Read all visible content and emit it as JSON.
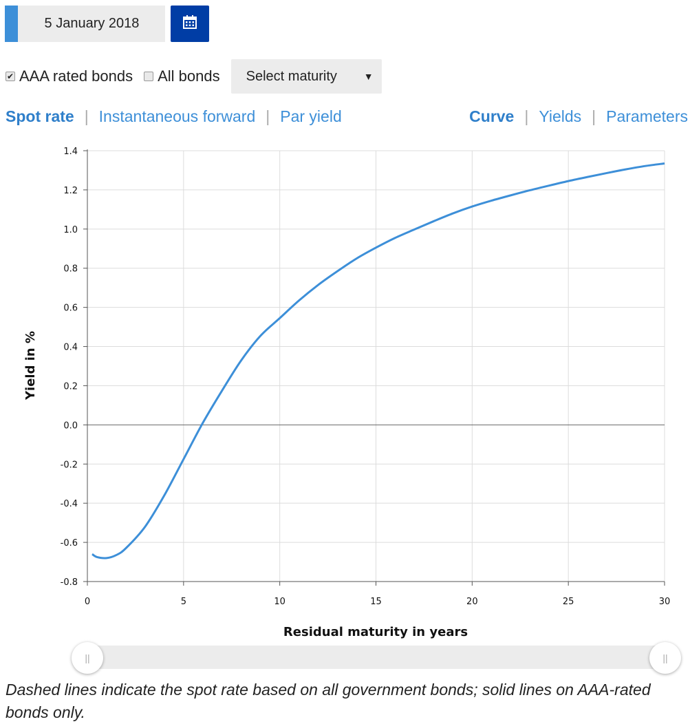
{
  "date_picker": {
    "value": "5 January 2018",
    "calendar_icon": "calendar-icon"
  },
  "options": {
    "aaa_label": "AAA rated bonds",
    "aaa_checked": true,
    "all_label": "All bonds",
    "all_checked": false,
    "maturity_select": "Select maturity"
  },
  "rate_tabs": [
    {
      "label": "Spot rate",
      "active": true
    },
    {
      "label": "Instantaneous forward",
      "active": false
    },
    {
      "label": "Par yield",
      "active": false
    }
  ],
  "view_tabs": [
    {
      "label": "Curve",
      "active": true
    },
    {
      "label": "Yields",
      "active": false
    },
    {
      "label": "Parameters",
      "active": false
    }
  ],
  "chart_data": {
    "type": "line",
    "xlabel": "Residual maturity in years",
    "ylabel": "Yield in %",
    "xlim": [
      0,
      30
    ],
    "ylim": [
      -0.8,
      1.4
    ],
    "x_ticks": [
      "0",
      "5",
      "10",
      "15",
      "20",
      "25",
      "30"
    ],
    "y_ticks": [
      "1.4",
      "1.2",
      "1.0",
      "0.8",
      "0.6",
      "0.4",
      "0.2",
      "0.0",
      "-0.2",
      "-0.4",
      "-0.6",
      "-0.8"
    ],
    "grid": true,
    "line_color": "#3d8fd8",
    "series": [
      {
        "style": "solid",
        "x": [
          0.25,
          0.5,
          1,
          1.5,
          2,
          3,
          4,
          5,
          6,
          7,
          8,
          9,
          10,
          11,
          12,
          13,
          14,
          15,
          16,
          17,
          18,
          19,
          20,
          21,
          22,
          23,
          24,
          25,
          26,
          27,
          28,
          29,
          30
        ],
        "y": [
          -0.66,
          -0.675,
          -0.68,
          -0.665,
          -0.63,
          -0.52,
          -0.36,
          -0.175,
          0.01,
          0.175,
          0.33,
          0.455,
          0.545,
          0.635,
          0.715,
          0.785,
          0.85,
          0.905,
          0.955,
          0.998,
          1.04,
          1.08,
          1.115,
          1.145,
          1.172,
          1.198,
          1.222,
          1.245,
          1.266,
          1.286,
          1.305,
          1.322,
          1.335
        ]
      }
    ]
  },
  "slider": {
    "left_handle": "||",
    "right_handle": "||"
  },
  "footnote": "Dashed lines indicate the spot rate based on all government bonds; solid lines on AAA-rated bonds only."
}
